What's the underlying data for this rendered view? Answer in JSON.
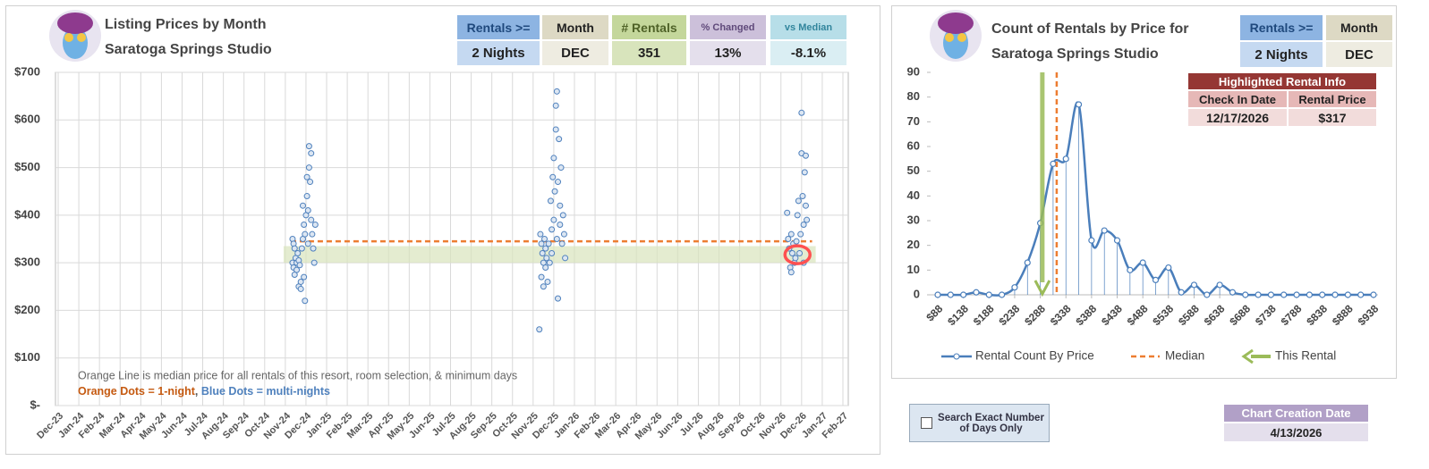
{
  "chart_data": [
    {
      "type": "scatter",
      "title": [
        "Listing Prices by Month",
        "Saratoga Springs Studio"
      ],
      "xlim": [
        0,
        38
      ],
      "xticks": [
        {
          "value": 0,
          "label": "Dec-23"
        },
        {
          "value": 1,
          "label": "Jan-24"
        },
        {
          "value": 2,
          "label": "Feb-24"
        },
        {
          "value": 3,
          "label": "Mar-24"
        },
        {
          "value": 4,
          "label": "Apr-24"
        },
        {
          "value": 5,
          "label": "May-24"
        },
        {
          "value": 6,
          "label": "Jun-24"
        },
        {
          "value": 7,
          "label": "Jul-24"
        },
        {
          "value": 8,
          "label": "Aug-24"
        },
        {
          "value": 9,
          "label": "Sep-24"
        },
        {
          "value": 10,
          "label": "Oct-24"
        },
        {
          "value": 11,
          "label": "Nov-24"
        },
        {
          "value": 12,
          "label": "Dec-24"
        },
        {
          "value": 13,
          "label": "Jan-25"
        },
        {
          "value": 14,
          "label": "Feb-25"
        },
        {
          "value": 15,
          "label": "Mar-25"
        },
        {
          "value": 16,
          "label": "Apr-25"
        },
        {
          "value": 17,
          "label": "May-25"
        },
        {
          "value": 18,
          "label": "Jun-25"
        },
        {
          "value": 19,
          "label": "Jul-25"
        },
        {
          "value": 20,
          "label": "Aug-25"
        },
        {
          "value": 21,
          "label": "Sep-25"
        },
        {
          "value": 22,
          "label": "Oct-25"
        },
        {
          "value": 23,
          "label": "Nov-25"
        },
        {
          "value": 24,
          "label": "Dec-25"
        },
        {
          "value": 25,
          "label": "Jan-26"
        },
        {
          "value": 26,
          "label": "Feb-26"
        },
        {
          "value": 27,
          "label": "Mar-26"
        },
        {
          "value": 28,
          "label": "Apr-26"
        },
        {
          "value": 29,
          "label": "May-26"
        },
        {
          "value": 30,
          "label": "Jun-26"
        },
        {
          "value": 31,
          "label": "Jul-26"
        },
        {
          "value": 32,
          "label": "Aug-26"
        },
        {
          "value": 33,
          "label": "Sep-26"
        },
        {
          "value": 34,
          "label": "Oct-26"
        },
        {
          "value": 35,
          "label": "Nov-26"
        },
        {
          "value": 36,
          "label": "Dec-26"
        },
        {
          "value": 37,
          "label": "Jan-27"
        },
        {
          "value": 38,
          "label": "Feb-27"
        }
      ],
      "ylim": [
        0,
        700
      ],
      "yticks": [
        {
          "value": 0,
          "label": "$-"
        },
        {
          "value": 100,
          "label": "$100"
        },
        {
          "value": 200,
          "label": "$200"
        },
        {
          "value": 300,
          "label": "$300"
        },
        {
          "value": 400,
          "label": "$400"
        },
        {
          "value": 500,
          "label": "$500"
        },
        {
          "value": 600,
          "label": "$600"
        },
        {
          "value": 700,
          "label": "$700"
        }
      ],
      "grid": true,
      "series": [
        {
          "color": "#4f81bd",
          "x": [
            11.35,
            11.4,
            11.45,
            11.35,
            11.4,
            11.45,
            11.5,
            11.55,
            11.55,
            11.6,
            11.65,
            11.65,
            11.7,
            11.75,
            11.75,
            11.8,
            11.85,
            11.85,
            11.9,
            11.9,
            11.95,
            11.95,
            12.0,
            12.05,
            12.05,
            12.1,
            12.1,
            12.15,
            12.15,
            12.2,
            12.25,
            12.25,
            12.3,
            12.35,
            12.4,
            12.45,
            23.3,
            23.35,
            23.4,
            23.4,
            23.45,
            23.5,
            23.5,
            23.55,
            23.6,
            23.6,
            23.65,
            23.7,
            23.75,
            23.8,
            23.85,
            23.9,
            23.9,
            23.95,
            24.0,
            24.0,
            24.05,
            24.1,
            24.1,
            24.15,
            24.15,
            24.2,
            24.2,
            24.25,
            24.3,
            24.3,
            24.35,
            24.4,
            24.45,
            24.5,
            24.55,
            35.3,
            35.35,
            35.4,
            35.45,
            35.5,
            35.5,
            35.55,
            35.6,
            35.65,
            35.7,
            35.75,
            35.8,
            35.85,
            35.9,
            35.95,
            36.0,
            36.0,
            36.05,
            36.1,
            36.1,
            36.15,
            36.2,
            36.25,
            36.2
          ],
          "values": [
            350,
            340,
            330,
            300,
            290,
            275,
            310,
            300,
            285,
            320,
            305,
            250,
            295,
            260,
            245,
            330,
            350,
            420,
            380,
            270,
            220,
            360,
            400,
            440,
            480,
            410,
            340,
            500,
            545,
            470,
            530,
            390,
            360,
            330,
            300,
            380,
            160,
            360,
            340,
            270,
            320,
            300,
            250,
            350,
            330,
            290,
            310,
            260,
            340,
            300,
            430,
            370,
            320,
            480,
            520,
            390,
            450,
            580,
            630,
            660,
            350,
            470,
            225,
            560,
            420,
            380,
            500,
            340,
            400,
            360,
            310,
            405,
            350,
            330,
            290,
            280,
            360,
            320,
            340,
            300,
            310,
            345,
            400,
            430,
            320,
            360,
            530,
            615,
            440,
            380,
            300,
            490,
            525,
            390,
            420
          ]
        }
      ],
      "median": 345,
      "median_color": "#ed7d31",
      "band": [
        300,
        335
      ],
      "band_color": "#d8e4bc",
      "highlight": {
        "x": 35.8,
        "y": 317
      },
      "highlight_color": "#ff5050",
      "annotations": [
        "Orange Line is median price for all rentals of this resort, room selection, & minimum days",
        "Orange Dots = 1-night",
        ", ",
        "Blue Dots = multi-nights"
      ]
    },
    {
      "type": "line",
      "title": [
        "Count of Rentals by Price for",
        "Saratoga Springs Studio"
      ],
      "x": [
        88,
        113,
        138,
        163,
        188,
        213,
        238,
        263,
        288,
        313,
        338,
        363,
        388,
        413,
        438,
        463,
        488,
        513,
        538,
        563,
        588,
        613,
        638,
        663,
        688,
        713,
        738,
        763,
        788,
        813,
        838,
        863,
        888,
        913,
        938
      ],
      "xlim": [
        88,
        938
      ],
      "xticks": [
        {
          "value": 88,
          "label": "$88"
        },
        {
          "value": 138,
          "label": "$138"
        },
        {
          "value": 188,
          "label": "$188"
        },
        {
          "value": 238,
          "label": "$238"
        },
        {
          "value": 288,
          "label": "$288"
        },
        {
          "value": 338,
          "label": "$338"
        },
        {
          "value": 388,
          "label": "$388"
        },
        {
          "value": 438,
          "label": "$438"
        },
        {
          "value": 488,
          "label": "$488"
        },
        {
          "value": 538,
          "label": "$538"
        },
        {
          "value": 588,
          "label": "$588"
        },
        {
          "value": 638,
          "label": "$638"
        },
        {
          "value": 688,
          "label": "$688"
        },
        {
          "value": 738,
          "label": "$738"
        },
        {
          "value": 788,
          "label": "$788"
        },
        {
          "value": 838,
          "label": "$838"
        },
        {
          "value": 888,
          "label": "$888"
        },
        {
          "value": 938,
          "label": "$938"
        }
      ],
      "ylim": [
        0,
        90
      ],
      "yticks": [
        0,
        10,
        20,
        30,
        40,
        50,
        60,
        70,
        80,
        90
      ],
      "series": [
        {
          "name": "Rental Count By Price",
          "color": "#4a7ebb",
          "values": [
            0,
            0,
            0,
            1,
            0,
            0,
            3,
            13,
            29,
            53,
            55,
            77,
            22,
            26,
            22,
            10,
            13,
            6,
            11,
            1,
            4,
            0,
            4,
            1,
            0,
            0,
            0,
            0,
            0,
            0,
            0,
            0,
            0,
            0,
            0
          ]
        }
      ],
      "median": {
        "name": "Median",
        "value": 320,
        "color": "#ed7d31"
      },
      "this_rental": {
        "name": "This Rental",
        "value": 292,
        "color": "#9bbb59"
      }
    }
  ],
  "stats_panel": {
    "headers": [
      "Rentals >=",
      "Month",
      "# Rentals",
      "% Changed",
      "vs Median"
    ],
    "values": [
      "2 Nights",
      "DEC",
      "351",
      "13%",
      "-8.1%"
    ]
  },
  "count_panel": {
    "headers": [
      "Rentals >=",
      "Month"
    ],
    "values": [
      "2 Nights",
      "DEC"
    ]
  },
  "highlighted_rental": {
    "title": "Highlighted Rental Info",
    "headers": [
      "Check In Date",
      "Rental Price"
    ],
    "values": [
      "12/17/2026",
      "$317"
    ]
  },
  "checkbox": {
    "label": "Search Exact Number of Days Only"
  },
  "creation_date": {
    "title": "Chart Creation Date",
    "value": "4/13/2026"
  }
}
